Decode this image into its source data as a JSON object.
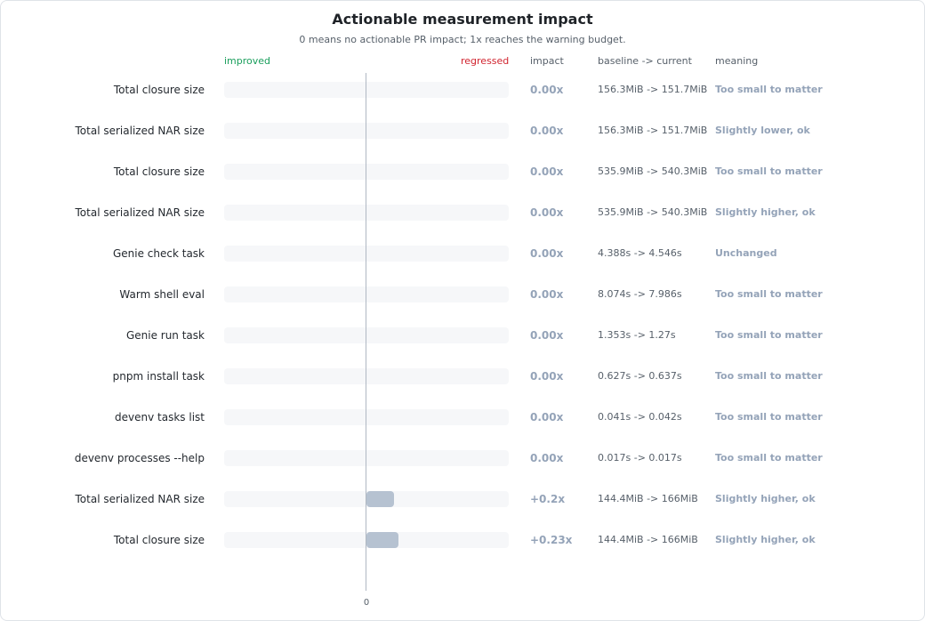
{
  "chart_data": {
    "type": "bar",
    "title": "Actionable measurement impact",
    "subtitle": "0 means no actionable PR impact; 1x reaches the warning budget.",
    "headers": {
      "improved": "improved",
      "regressed": "regressed",
      "impact": "impact",
      "baseline_current": "baseline -> current",
      "meaning": "meaning"
    },
    "axis_tick": "0",
    "xlim": [
      -1,
      1
    ],
    "rows": [
      {
        "label": "Total closure size",
        "value": 0.0,
        "impact": "0.00x",
        "baseline_current": "156.3MiB -> 151.7MiB",
        "meaning": "Too small to matter"
      },
      {
        "label": "Total serialized NAR size",
        "value": 0.0,
        "impact": "0.00x",
        "baseline_current": "156.3MiB -> 151.7MiB",
        "meaning": "Slightly lower, ok"
      },
      {
        "label": "Total closure size",
        "value": 0.0,
        "impact": "0.00x",
        "baseline_current": "535.9MiB -> 540.3MiB",
        "meaning": "Too small to matter"
      },
      {
        "label": "Total serialized NAR size",
        "value": 0.0,
        "impact": "0.00x",
        "baseline_current": "535.9MiB -> 540.3MiB",
        "meaning": "Slightly higher, ok"
      },
      {
        "label": "Genie check task",
        "value": 0.0,
        "impact": "0.00x",
        "baseline_current": "4.388s -> 4.546s",
        "meaning": "Unchanged"
      },
      {
        "label": "Warm shell eval",
        "value": 0.0,
        "impact": "0.00x",
        "baseline_current": "8.074s -> 7.986s",
        "meaning": "Too small to matter"
      },
      {
        "label": "Genie run task",
        "value": 0.0,
        "impact": "0.00x",
        "baseline_current": "1.353s -> 1.27s",
        "meaning": "Too small to matter"
      },
      {
        "label": "pnpm install task",
        "value": 0.0,
        "impact": "0.00x",
        "baseline_current": "0.627s -> 0.637s",
        "meaning": "Too small to matter"
      },
      {
        "label": "devenv tasks list",
        "value": 0.0,
        "impact": "0.00x",
        "baseline_current": "0.041s -> 0.042s",
        "meaning": "Too small to matter"
      },
      {
        "label": "devenv processes --help",
        "value": 0.0,
        "impact": "0.00x",
        "baseline_current": "0.017s -> 0.017s",
        "meaning": "Too small to matter"
      },
      {
        "label": "Total serialized NAR size",
        "value": 0.2,
        "impact": "+0.2x",
        "baseline_current": "144.4MiB -> 166MiB",
        "meaning": "Slightly higher, ok"
      },
      {
        "label": "Total closure size",
        "value": 0.23,
        "impact": "+0.23x",
        "baseline_current": "144.4MiB -> 166MiB",
        "meaning": "Slightly higher, ok"
      }
    ]
  }
}
